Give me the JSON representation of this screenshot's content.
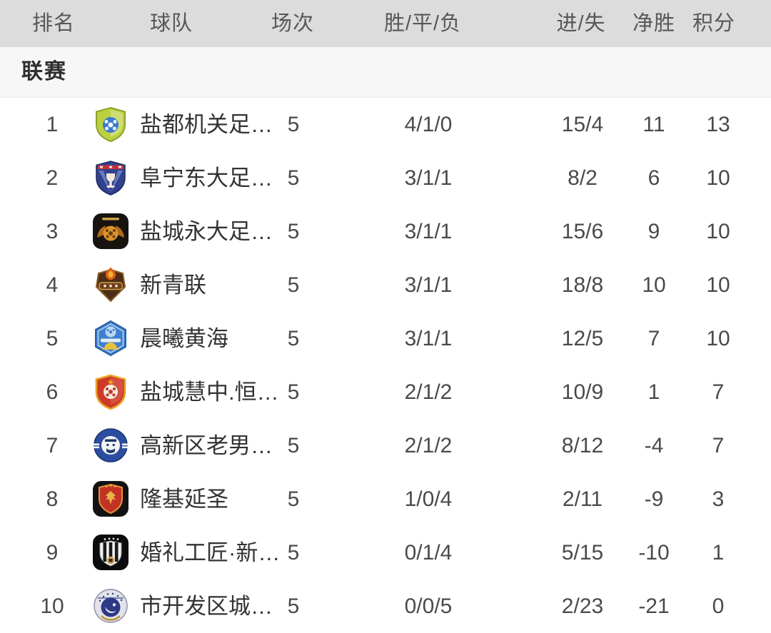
{
  "table": {
    "columns": [
      {
        "key": "rank",
        "label": "排名"
      },
      {
        "key": "team",
        "label": "球队"
      },
      {
        "key": "matches",
        "label": "场次"
      },
      {
        "key": "wdl",
        "label": "胜/平/负"
      },
      {
        "key": "goals",
        "label": "进/失"
      },
      {
        "key": "diff",
        "label": "净胜"
      },
      {
        "key": "points",
        "label": "积分"
      }
    ],
    "section_label": "联赛",
    "rows": [
      {
        "rank": "1",
        "name": "盐都机关足…",
        "matches": "5",
        "wdl": "4/1/0",
        "goals": "15/4",
        "diff": "11",
        "points": "13",
        "logo": {
          "id": "yandu-jiguan",
          "shape": "shield",
          "colors": [
            "#bcd13f",
            "#8fa32a",
            "#3a7bd5",
            "#ffffff"
          ]
        }
      },
      {
        "rank": "2",
        "name": "阜宁东大足…",
        "matches": "5",
        "wdl": "3/1/1",
        "goals": "8/2",
        "diff": "6",
        "points": "10",
        "logo": {
          "id": "funing-dongda",
          "shape": "shield",
          "colors": [
            "#31418e",
            "#c5303a",
            "#f0e8d8",
            "#8fa8d8"
          ]
        }
      },
      {
        "rank": "3",
        "name": "盐城永大足…",
        "matches": "5",
        "wdl": "3/1/1",
        "goals": "15/6",
        "diff": "9",
        "points": "10",
        "logo": {
          "id": "yancheng-yongda",
          "shape": "rounded-square",
          "colors": [
            "#17130e",
            "#d8952c",
            "#b06a1e",
            "#caa24a"
          ]
        }
      },
      {
        "rank": "4",
        "name": "新青联",
        "matches": "5",
        "wdl": "3/1/1",
        "goals": "18/8",
        "diff": "10",
        "points": "10",
        "logo": {
          "id": "xinqinglian",
          "shape": "badge",
          "colors": [
            "#4e2d16",
            "#e06018",
            "#caa24a",
            "#8a5a28"
          ]
        }
      },
      {
        "rank": "5",
        "name": "晨曦黄海",
        "matches": "5",
        "wdl": "3/1/1",
        "goals": "12/5",
        "diff": "7",
        "points": "10",
        "logo": {
          "id": "chenxi-huanghai",
          "shape": "hexagon",
          "colors": [
            "#3f7fd0",
            "#bcd7f2",
            "#e8c33a",
            "#2a5ea8"
          ]
        }
      },
      {
        "rank": "6",
        "name": "盐城慧中.恒…",
        "matches": "5",
        "wdl": "2/1/2",
        "goals": "10/9",
        "diff": "1",
        "points": "7",
        "logo": {
          "id": "yancheng-huizhong",
          "shape": "shield",
          "colors": [
            "#cf3a28",
            "#e8a428",
            "#f5ede0",
            "#c0392b"
          ]
        }
      },
      {
        "rank": "7",
        "name": "高新区老男…",
        "matches": "5",
        "wdl": "2/1/2",
        "goals": "8/12",
        "diff": "-4",
        "points": "7",
        "logo": {
          "id": "gaoxinqu-laonan",
          "shape": "circle",
          "colors": [
            "#2c4ea0",
            "#f2f2f2",
            "#1c3470",
            "#ffffff"
          ]
        }
      },
      {
        "rank": "8",
        "name": "隆基延圣",
        "matches": "5",
        "wdl": "1/0/4",
        "goals": "2/11",
        "diff": "-9",
        "points": "3",
        "logo": {
          "id": "longji-yansheng",
          "shape": "rounded-square",
          "colors": [
            "#121212",
            "#c23326",
            "#e89038",
            "#e8b44a"
          ]
        }
      },
      {
        "rank": "9",
        "name": "婚礼工匠·新…",
        "matches": "5",
        "wdl": "0/1/4",
        "goals": "5/15",
        "diff": "-10",
        "points": "1",
        "logo": {
          "id": "hunli-gongjiang",
          "shape": "rounded-square",
          "colors": [
            "#0b0b0b",
            "#f0f0f0",
            "#1a1a1a",
            "#caa24a"
          ]
        }
      },
      {
        "rank": "10",
        "name": "市开发区城…",
        "matches": "5",
        "wdl": "0/0/5",
        "goals": "2/23",
        "diff": "-21",
        "points": "0",
        "logo": {
          "id": "shikaifaqu-cheng",
          "shape": "circle",
          "colors": [
            "#e2e3ea",
            "#2c3a86",
            "#e8e8f0",
            "#b89030"
          ]
        }
      }
    ]
  },
  "colors": {
    "header_bg": "#dcdcdc",
    "header_text": "#575757",
    "section_bg": "#f7f7f7",
    "row_bg": "#ffffff",
    "number_text": "#4a4a4a",
    "name_text": "#333333"
  }
}
